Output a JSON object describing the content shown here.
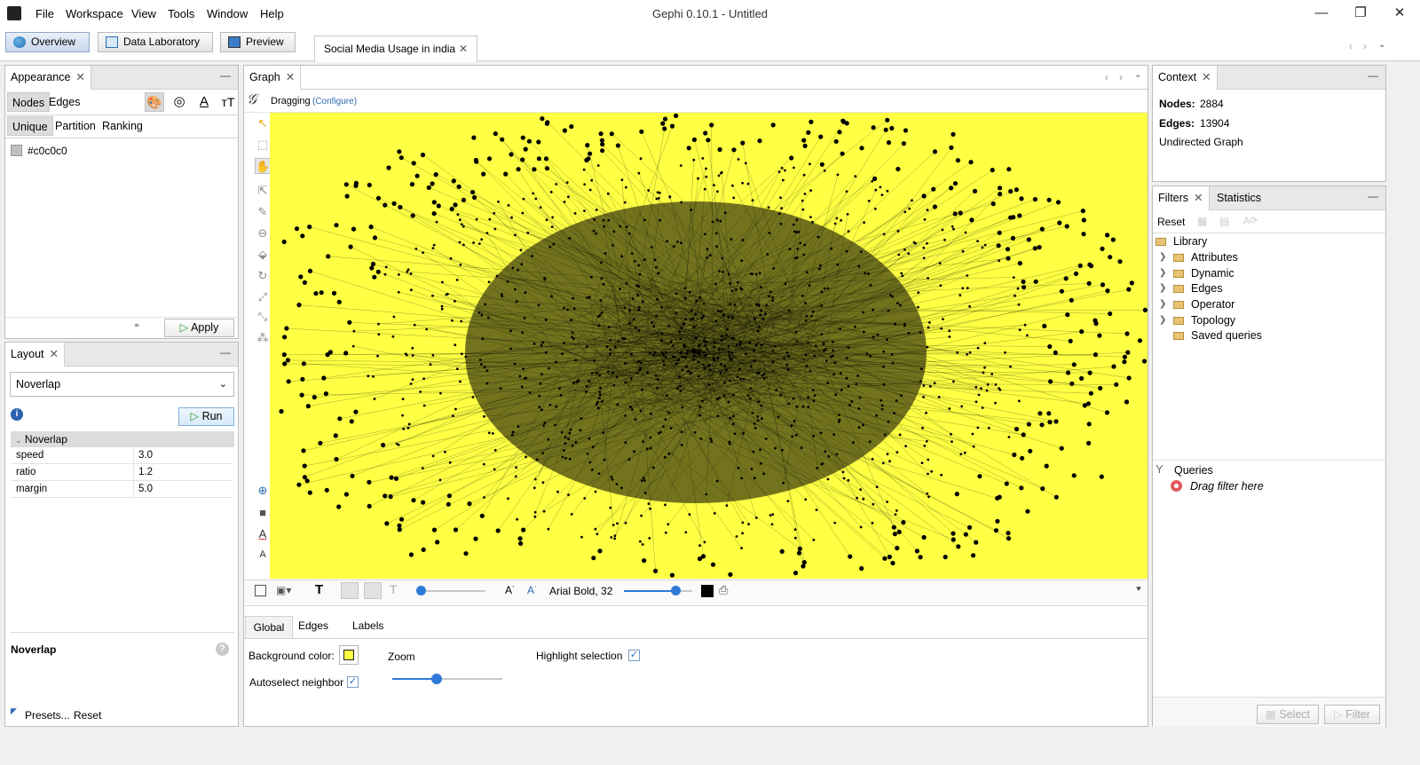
{
  "window": {
    "title": "Gephi 0.10.1 - Untitled",
    "menu": [
      "File",
      "Workspace",
      "View",
      "Tools",
      "Window",
      "Help"
    ],
    "controls": [
      "—",
      "❐",
      "✕"
    ]
  },
  "modes": {
    "overview": "Overview",
    "data_laboratory": "Data Laboratory",
    "preview": "Preview"
  },
  "workspace_tab": "Social Media Usage in india",
  "appearance": {
    "title": "Appearance",
    "element_tabs": [
      "Nodes",
      "Edges"
    ],
    "mode_tabs": [
      "Unique",
      "Partition",
      "Ranking"
    ],
    "color_value": "#c0c0c0",
    "apply_label": "Apply"
  },
  "layout": {
    "title": "Layout",
    "selected_algorithm": "Noverlap",
    "run_label": "Run",
    "section_title": "Noverlap",
    "properties": [
      {
        "name": "speed",
        "value": "3.0"
      },
      {
        "name": "ratio",
        "value": "1.2"
      },
      {
        "name": "margin",
        "value": "5.0"
      }
    ],
    "description_title": "Noverlap",
    "presets_label": "Presets...",
    "reset_label": "Reset"
  },
  "graph": {
    "title": "Graph",
    "tool_label": "Dragging",
    "configure_label": "(Configure)",
    "background_color": "#ffff44",
    "label_font": "Arial Bold, 32"
  },
  "graph_settings": {
    "tabs": [
      "Global",
      "Edges",
      "Labels"
    ],
    "background_color_label": "Background color:",
    "zoom_label": "Zoom",
    "highlight_label": "Highlight selection",
    "highlight_checked": true,
    "autoselect_label": "Autoselect neighbor",
    "autoselect_checked": true,
    "zoom_level": 0.4
  },
  "context": {
    "title": "Context",
    "nodes_label": "Nodes:",
    "nodes_value": "2884",
    "edges_label": "Edges:",
    "edges_value": "13904",
    "graph_type": "Undirected Graph"
  },
  "filters": {
    "tabs": [
      "Filters",
      "Statistics"
    ],
    "reset_label": "Reset",
    "library_label": "Library",
    "categories": [
      "Attributes",
      "Dynamic",
      "Edges",
      "Operator",
      "Topology"
    ],
    "saved_queries": "Saved queries",
    "queries_label": "Queries",
    "drag_hint": "Drag filter here",
    "select_label": "Select",
    "filter_label": "Filter"
  }
}
